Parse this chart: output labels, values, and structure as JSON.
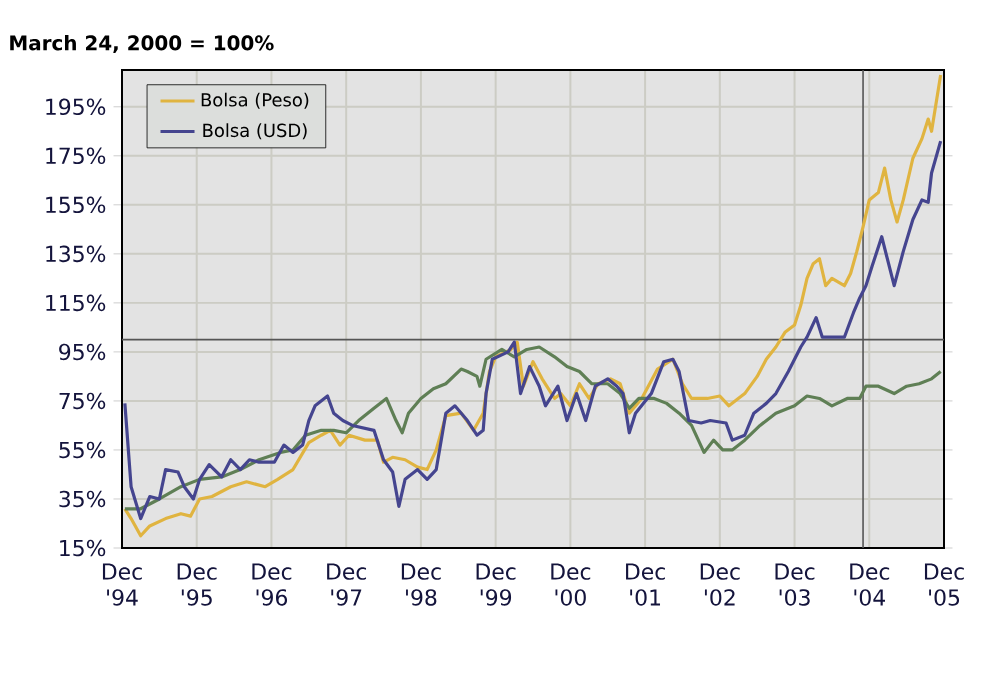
{
  "chart_data": {
    "type": "line",
    "title": "March 24, 2000 = 100%",
    "xlim": [
      "1994-12-01",
      "2005-12-01"
    ],
    "xticks": [
      {
        "value": "1994-12-01",
        "label": "Dec '94"
      },
      {
        "value": "1995-12-01",
        "label": "Dec '95"
      },
      {
        "value": "1996-12-01",
        "label": "Dec '96"
      },
      {
        "value": "1997-12-01",
        "label": "Dec '97"
      },
      {
        "value": "1998-12-01",
        "label": "Dec '98"
      },
      {
        "value": "1999-12-01",
        "label": "Dec '99"
      },
      {
        "value": "2000-12-01",
        "label": "Dec '00"
      },
      {
        "value": "2001-12-01",
        "label": "Dec '01"
      },
      {
        "value": "2002-12-01",
        "label": "Dec '02"
      },
      {
        "value": "2003-12-01",
        "label": "Dec '03"
      },
      {
        "value": "2004-12-01",
        "label": "Dec '04"
      },
      {
        "value": "2005-12-01",
        "label": "Dec '05"
      }
    ],
    "ylim": [
      15,
      210
    ],
    "yticks": [
      {
        "value": 15,
        "label": "15%"
      },
      {
        "value": 35,
        "label": "35%"
      },
      {
        "value": 55,
        "label": "55%"
      },
      {
        "value": 75,
        "label": "75%"
      },
      {
        "value": 95,
        "label": "95%"
      },
      {
        "value": 115,
        "label": "115%"
      },
      {
        "value": 135,
        "label": "135%"
      },
      {
        "value": 155,
        "label": "155%"
      },
      {
        "value": 175,
        "label": "175%"
      },
      {
        "value": 195,
        "label": "195%"
      }
    ],
    "grid": true,
    "legend": "top left",
    "marker": "none",
    "line_style": "solid",
    "ref_lines": [
      {
        "axis": "y",
        "value": 100,
        "color": "#555555"
      },
      {
        "axis": "x",
        "value": "2004-11-01",
        "color": "#555555"
      }
    ],
    "series": [
      {
        "name": "Bolsa (Peso)",
        "color": "#e0b440",
        "x": [
          "1994-12-15",
          "1995-01-15",
          "1995-03-01",
          "1995-04-15",
          "1995-07-01",
          "1995-09-15",
          "1995-11-01",
          "1995-12-15",
          "1996-02-15",
          "1996-05-15",
          "1996-08-01",
          "1996-11-01",
          "1997-01-01",
          "1997-03-15",
          "1997-06-01",
          "1997-08-01",
          "1997-09-15",
          "1997-11-01",
          "1997-12-15",
          "1998-03-01",
          "1998-05-01",
          "1998-06-01",
          "1998-07-15",
          "1998-09-15",
          "1998-11-15",
          "1999-01-01",
          "1999-02-15",
          "1999-04-01",
          "1999-06-15",
          "1999-08-15",
          "1999-10-01",
          "1999-11-01",
          "1999-12-01",
          "2000-02-15",
          "2000-03-15",
          "2000-04-15",
          "2000-06-01",
          "2000-07-15",
          "2000-09-15",
          "2000-10-15",
          "2000-12-01",
          "2001-01-15",
          "2001-03-01",
          "2001-04-15",
          "2001-06-15",
          "2001-08-01",
          "2001-09-15",
          "2001-11-15",
          "2002-02-01",
          "2002-04-15",
          "2002-06-01",
          "2002-07-15",
          "2002-10-01",
          "2002-12-01",
          "2003-01-15",
          "2003-04-01",
          "2003-06-01",
          "2003-07-15",
          "2003-09-01",
          "2003-10-15",
          "2003-12-01",
          "2004-01-01",
          "2004-02-01",
          "2004-03-01",
          "2004-04-01",
          "2004-05-01",
          "2004-06-01",
          "2004-08-01",
          "2004-09-01",
          "2004-10-01",
          "2004-11-01",
          "2004-12-01",
          "2005-01-15",
          "2005-02-15",
          "2005-03-15",
          "2005-04-15",
          "2005-05-15",
          "2005-07-01",
          "2005-08-15",
          "2005-09-15",
          "2005-10-01",
          "2005-11-15"
        ],
        "values": [
          31,
          27,
          20,
          24,
          27,
          29,
          28,
          35,
          36,
          40,
          42,
          40,
          43,
          47,
          58,
          61,
          63,
          57,
          61,
          59,
          59,
          50,
          52,
          51,
          48,
          47,
          55,
          69,
          70,
          63,
          70,
          87,
          93,
          96,
          99,
          81,
          91,
          84,
          76,
          78,
          73,
          82,
          76,
          82,
          84,
          82,
          70,
          76,
          88,
          92,
          82,
          76,
          76,
          77,
          73,
          78,
          85,
          92,
          97,
          103,
          106,
          114,
          125,
          131,
          133,
          122,
          125,
          122,
          127,
          136,
          146,
          157,
          160,
          170,
          157,
          148,
          157,
          174,
          182,
          190,
          185,
          208
        ]
      },
      {
        "color": "#5f7f55",
        "x": [
          "1994-12-15",
          "1995-03-01",
          "1995-06-01",
          "1995-09-15",
          "1995-12-15",
          "1996-04-01",
          "1996-07-01",
          "1996-10-01",
          "1997-01-15",
          "1997-03-15",
          "1997-05-15",
          "1997-08-01",
          "1997-10-01",
          "1997-12-01",
          "1998-02-01",
          "1998-04-15",
          "1998-06-15",
          "1998-08-01",
          "1998-09-01",
          "1998-10-01",
          "1998-12-01",
          "1999-02-01",
          "1999-04-01",
          "1999-06-15",
          "1999-07-15",
          "1999-09-01",
          "1999-09-15",
          "1999-10-15",
          "2000-01-01",
          "2000-03-01",
          "2000-05-01",
          "2000-07-01",
          "2000-09-15",
          "2000-11-15",
          "2001-01-15",
          "2001-03-15",
          "2001-06-01",
          "2001-08-01",
          "2001-09-15",
          "2001-11-01",
          "2002-01-15",
          "2002-03-15",
          "2002-05-15",
          "2002-07-15",
          "2002-09-15",
          "2002-11-01",
          "2002-12-15",
          "2003-02-01",
          "2003-04-01",
          "2003-06-15",
          "2003-09-01",
          "2003-12-01",
          "2004-02-01",
          "2004-04-01",
          "2004-06-01",
          "2004-08-15",
          "2004-10-15",
          "2004-11-15",
          "2005-01-15",
          "2005-04-01",
          "2005-06-01",
          "2005-08-01",
          "2005-10-01",
          "2005-11-15"
        ],
        "values": [
          31,
          31,
          35,
          40,
          43,
          44,
          47,
          51,
          54,
          55,
          61,
          63,
          63,
          62,
          67,
          72,
          76,
          67,
          62,
          70,
          76,
          80,
          82,
          88,
          87,
          85,
          81,
          92,
          96,
          93,
          96,
          97,
          93,
          89,
          87,
          82,
          82,
          78,
          72,
          76,
          76,
          74,
          70,
          65,
          54,
          59,
          55,
          55,
          59,
          65,
          70,
          73,
          77,
          76,
          73,
          76,
          76,
          81,
          81,
          78,
          81,
          82,
          84,
          87
        ]
      },
      {
        "name": "Bolsa (USD)",
        "color": "#45458f",
        "x": [
          "1994-12-15",
          "1995-01-15",
          "1995-03-01",
          "1995-04-15",
          "1995-06-01",
          "1995-07-01",
          "1995-09-01",
          "1995-10-01",
          "1995-11-15",
          "1995-12-15",
          "1996-02-01",
          "1996-04-01",
          "1996-05-15",
          "1996-07-01",
          "1996-08-15",
          "1996-10-01",
          "1996-12-15",
          "1997-02-01",
          "1997-03-15",
          "1997-05-01",
          "1997-06-01",
          "1997-07-01",
          "1997-09-01",
          "1997-10-01",
          "1997-11-15",
          "1998-01-01",
          "1998-04-15",
          "1998-06-01",
          "1998-07-15",
          "1998-08-15",
          "1998-09-15",
          "1998-11-15",
          "1999-01-01",
          "1999-02-15",
          "1999-04-01",
          "1999-05-15",
          "1999-07-15",
          "1999-09-01",
          "1999-10-01",
          "1999-10-15",
          "1999-11-15",
          "2000-02-01",
          "2000-03-01",
          "2000-04-01",
          "2000-05-15",
          "2000-07-01",
          "2000-08-01",
          "2000-10-01",
          "2000-11-15",
          "2001-01-01",
          "2001-02-15",
          "2001-04-01",
          "2001-06-01",
          "2001-07-15",
          "2001-08-15",
          "2001-09-15",
          "2001-10-15",
          "2002-01-01",
          "2002-03-01",
          "2002-04-15",
          "2002-05-15",
          "2002-07-01",
          "2002-09-01",
          "2002-10-15",
          "2003-01-01",
          "2003-02-01",
          "2003-04-01",
          "2003-05-15",
          "2003-07-15",
          "2003-09-01",
          "2003-11-01",
          "2004-01-01",
          "2004-02-01",
          "2004-03-15",
          "2004-04-15",
          "2004-08-01",
          "2004-09-15",
          "2004-10-15",
          "2004-11-15",
          "2004-12-15",
          "2005-02-01",
          "2005-04-01",
          "2005-05-15",
          "2005-07-01",
          "2005-08-15",
          "2005-09-15",
          "2005-10-01",
          "2005-11-15"
        ],
        "values": [
          74,
          40,
          27,
          36,
          35,
          47,
          46,
          40,
          35,
          43,
          49,
          44,
          51,
          47,
          51,
          50,
          50,
          57,
          54,
          57,
          67,
          73,
          77,
          70,
          67,
          65,
          63,
          51,
          46,
          32,
          43,
          47,
          43,
          47,
          70,
          73,
          67,
          61,
          63,
          78,
          92,
          95,
          99,
          78,
          89,
          81,
          73,
          81,
          67,
          78,
          67,
          81,
          84,
          81,
          78,
          62,
          70,
          78,
          91,
          92,
          87,
          67,
          66,
          67,
          66,
          59,
          61,
          70,
          74,
          78,
          87,
          97,
          101,
          109,
          101,
          101,
          111,
          117,
          122,
          130,
          142,
          122,
          136,
          149,
          157,
          156,
          168,
          181
        ]
      }
    ]
  }
}
